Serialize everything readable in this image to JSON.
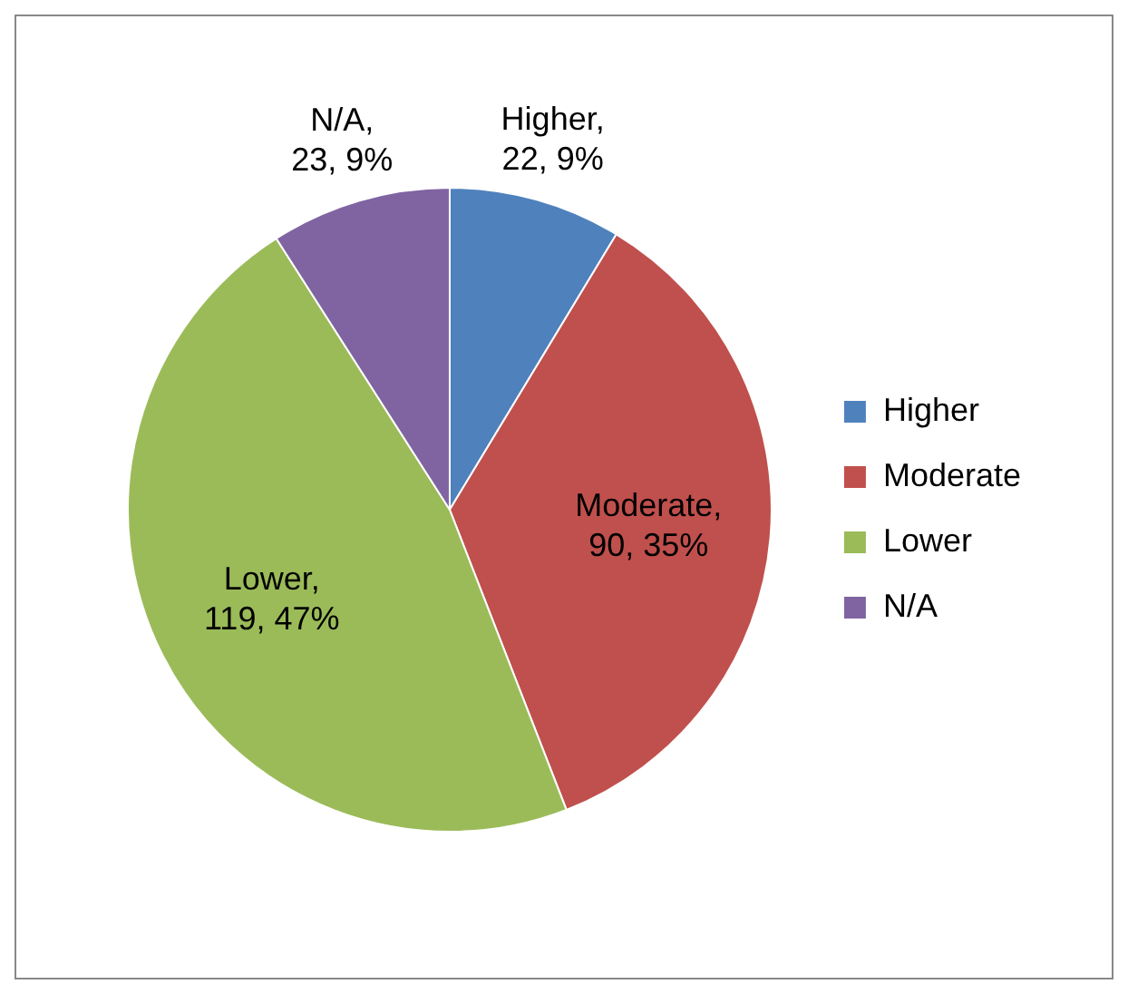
{
  "chart_data": {
    "type": "pie",
    "categories": [
      "Higher",
      "Moderate",
      "Lower",
      "N/A"
    ],
    "values": [
      22,
      90,
      119,
      23
    ],
    "colors": [
      "#4f81bd",
      "#c0504d",
      "#9bbb59",
      "#8064a2"
    ],
    "value_labels": [
      "Higher, 22, 9%",
      "Moderate, 90, 35%",
      "Lower, 119, 47%",
      "N/A, 23, 9%"
    ],
    "legend": "right"
  }
}
